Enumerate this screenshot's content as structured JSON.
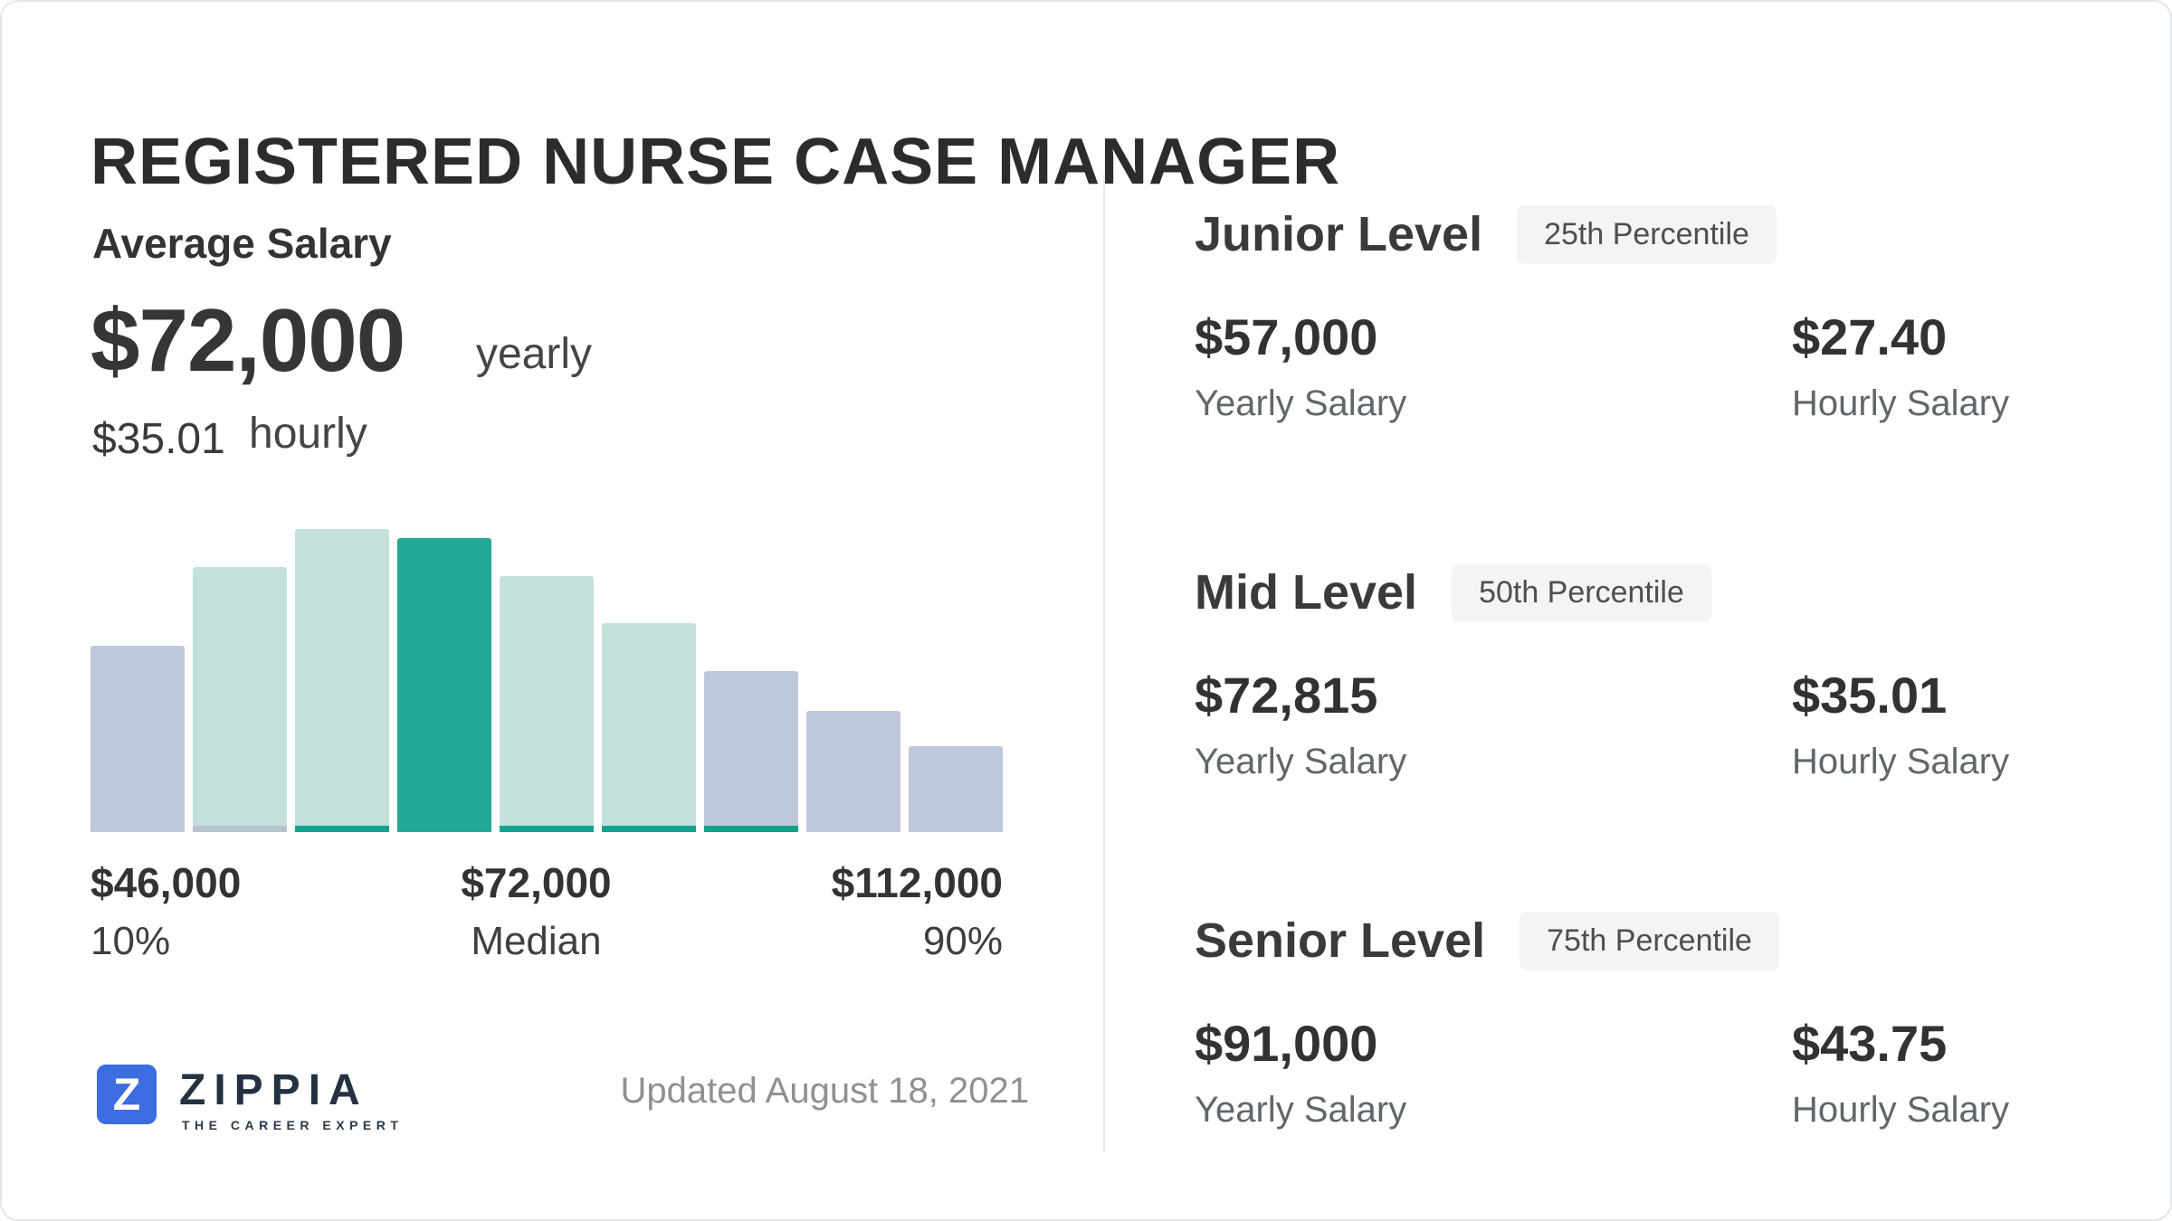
{
  "title": "REGISTERED NURSE CASE MANAGER",
  "average": {
    "heading": "Average Salary",
    "yearly_value": "$72,000",
    "yearly_unit": "yearly",
    "hourly_value": "$35.01",
    "hourly_unit": "hourly"
  },
  "chart_data": {
    "type": "bar",
    "title": "Salary distribution histogram",
    "values": [
      0.615,
      0.875,
      1.0,
      0.97,
      0.845,
      0.69,
      0.53,
      0.4,
      0.285
    ],
    "bar_colors": [
      "lavender",
      "mint",
      "mint",
      "teal",
      "mint",
      "mint",
      "lavender",
      "lavender",
      "lavender"
    ],
    "bar_base_strips": [
      "none",
      "gray",
      "teal",
      "none",
      "teal",
      "teal",
      "teal",
      "none",
      "none"
    ],
    "ylim": [
      0,
      1
    ],
    "grid": false,
    "legend": false,
    "x_axis": {
      "left_value": "$46,000",
      "left_sub": "10%",
      "center_value": "$72,000",
      "center_sub": "Median",
      "right_value": "$112,000",
      "right_sub": "90%"
    }
  },
  "levels": [
    {
      "name": "Junior Level",
      "badge": "25th Percentile",
      "yearly_value": "$57,000",
      "yearly_label": "Yearly Salary",
      "hourly_value": "$27.40",
      "hourly_label": "Hourly Salary"
    },
    {
      "name": "Mid Level",
      "badge": "50th Percentile",
      "yearly_value": "$72,815",
      "yearly_label": "Yearly Salary",
      "hourly_value": "$35.01",
      "hourly_label": "Hourly Salary"
    },
    {
      "name": "Senior Level",
      "badge": "75th Percentile",
      "yearly_value": "$91,000",
      "yearly_label": "Yearly Salary",
      "hourly_value": "$43.75",
      "hourly_label": "Hourly Salary"
    }
  ],
  "footer": {
    "brand_letter": "Z",
    "brand_name": "ZIPPIA",
    "brand_tagline": "THE CAREER EXPERT",
    "updated": "Updated August 18, 2021"
  },
  "colors": {
    "teal": "#22a897",
    "mint": "#c2e1db",
    "lavender": "#bfc7dc",
    "strip_teal": "#14a18c",
    "strip_gray": "#b7c4cf",
    "brand_blue": "#3b6ce0"
  }
}
